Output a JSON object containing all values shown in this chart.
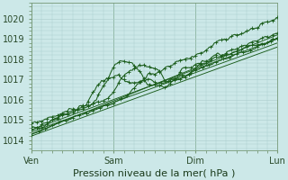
{
  "xlabel": "Pression niveau de la mer( hPa )",
  "ylim": [
    1013.5,
    1020.8
  ],
  "yticks": [
    1014,
    1015,
    1016,
    1017,
    1018,
    1019,
    1020
  ],
  "day_labels": [
    "Ven",
    "Sam",
    "Dim",
    "Lun"
  ],
  "day_positions": [
    0,
    48,
    96,
    144
  ],
  "background_color": "#cce8e8",
  "grid_color": "#aacccc",
  "line_color": "#1a5c1a",
  "font_size": 7,
  "total_hours": 144
}
